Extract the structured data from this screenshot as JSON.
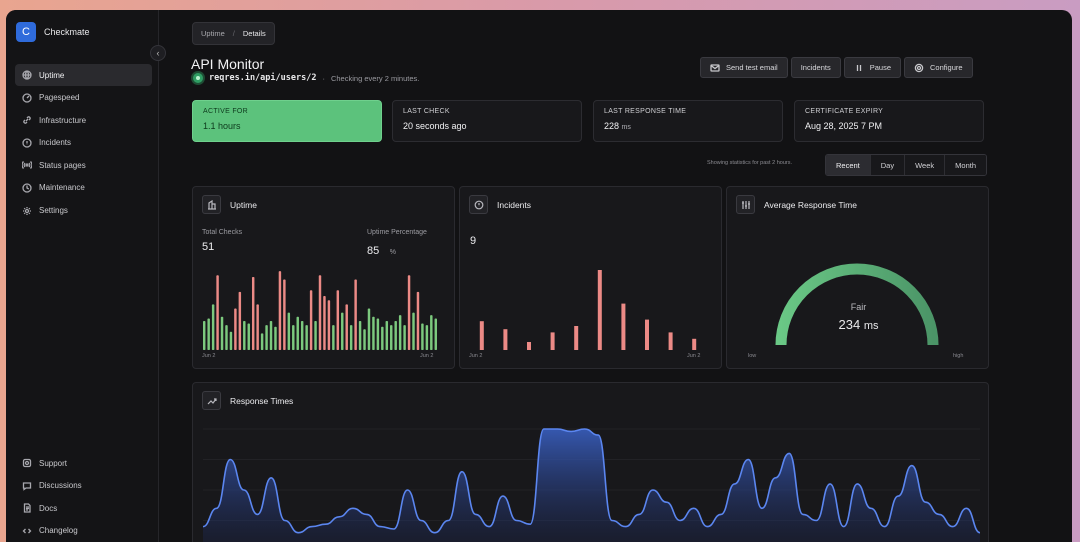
{
  "app": {
    "name": "Checkmate",
    "logo_letter": "C"
  },
  "sidebar": {
    "items": [
      {
        "label": "Uptime",
        "icon": "globe-icon",
        "active": true
      },
      {
        "label": "Pagespeed",
        "icon": "gauge-icon"
      },
      {
        "label": "Infrastructure",
        "icon": "link-icon"
      },
      {
        "label": "Incidents",
        "icon": "alert-circle-icon"
      },
      {
        "label": "Status pages",
        "icon": "broadcast-icon"
      },
      {
        "label": "Maintenance",
        "icon": "wrench-icon"
      },
      {
        "label": "Settings",
        "icon": "gear-icon"
      }
    ],
    "bottom_items": [
      {
        "label": "Support",
        "icon": "support-icon"
      },
      {
        "label": "Discussions",
        "icon": "chat-icon"
      },
      {
        "label": "Docs",
        "icon": "document-icon"
      },
      {
        "label": "Changelog",
        "icon": "code-icon"
      }
    ]
  },
  "breadcrumb": {
    "parent": "Uptime",
    "current": "Details",
    "separator": "/"
  },
  "monitor": {
    "title": "API Monitor",
    "url": "reqres.in/api/users/2",
    "check_note": "Checking every 2 minutes.",
    "status_color": "#2f9d63"
  },
  "actions": {
    "send_test_email": "Send test email",
    "incidents": "Incidents",
    "pause": "Pause",
    "configure": "Configure"
  },
  "stats": {
    "active_for": {
      "label": "ACTIVE FOR",
      "value": "1.1 hours"
    },
    "last_check": {
      "label": "LAST CHECK",
      "value": "20 seconds ago"
    },
    "last_response": {
      "label": "LAST RESPONSE TIME",
      "value": "228",
      "unit": "ms"
    },
    "cert_expiry": {
      "label": "CERTIFICATE EXPIRY",
      "value": "Aug 28, 2025 7 PM"
    }
  },
  "range": {
    "note": "Showing statistics for past 2 hours.",
    "options": [
      "Recent",
      "Day",
      "Week",
      "Month"
    ],
    "selected": "Recent"
  },
  "uptime_card": {
    "title": "Uptime",
    "total_checks_label": "Total Checks",
    "total_checks": "51",
    "uptime_pct_label": "Uptime Percentage",
    "uptime_pct": "85",
    "uptime_pct_unit": "%",
    "x_start": "Jun 2",
    "x_end": "Jun 2",
    "bars": [
      0.35,
      0.38,
      0.55,
      0.9,
      0.4,
      0.3,
      0.22,
      0.5,
      0.7,
      0.35,
      0.32,
      0.88,
      0.55,
      0.2,
      0.3,
      0.35,
      0.28,
      0.95,
      0.85,
      0.45,
      0.3,
      0.4,
      0.35,
      0.3,
      0.72,
      0.35,
      0.9,
      0.65,
      0.6,
      0.3,
      0.72,
      0.45,
      0.55,
      0.3,
      0.85,
      0.35,
      0.25,
      0.5,
      0.4,
      0.38,
      0.28,
      0.35,
      0.3,
      0.35,
      0.42,
      0.3,
      0.9,
      0.45,
      0.7,
      0.32,
      0.3,
      0.42,
      0.38
    ],
    "bar_status": [
      1,
      1,
      1,
      0,
      1,
      1,
      1,
      0,
      0,
      1,
      1,
      0,
      0,
      1,
      1,
      1,
      1,
      0,
      0,
      1,
      1,
      1,
      1,
      1,
      0,
      1,
      0,
      0,
      0,
      1,
      0,
      1,
      0,
      1,
      0,
      1,
      1,
      1,
      1,
      1,
      1,
      1,
      1,
      1,
      1,
      1,
      0,
      1,
      0,
      1,
      1,
      1,
      1
    ],
    "up_color": "#7cc97e",
    "down_color": "#ec8a86"
  },
  "incidents_card": {
    "title": "Incidents",
    "count": "9",
    "x_start": "Jun 2",
    "x_end": "Jun 2",
    "bars": [
      0.36,
      0.26,
      0.1,
      0.22,
      0.3,
      1.0,
      0.58,
      0.38,
      0.22,
      0.14
    ],
    "bar_color": "#ec8a86"
  },
  "response_card": {
    "title": "Average Response Time",
    "rating": "Fair",
    "value": "234",
    "unit": "ms",
    "low_label": "low",
    "high_label": "high",
    "fill_fraction": 0.55
  },
  "response_times": {
    "title": "Response Times",
    "values": [
      0.2,
      0.35,
      0.75,
      0.5,
      0.3,
      0.6,
      0.25,
      0.15,
      0.2,
      0.22,
      0.28,
      0.35,
      0.3,
      0.2,
      0.18,
      0.5,
      0.25,
      0.15,
      0.25,
      0.65,
      0.3,
      0.2,
      0.45,
      0.25,
      0.22,
      1.0,
      1.0,
      0.98,
      1.0,
      0.95,
      0.25,
      0.2,
      0.3,
      0.5,
      0.4,
      0.25,
      0.35,
      0.2,
      0.3,
      0.55,
      0.75,
      0.35,
      0.6,
      0.8,
      0.3,
      0.25,
      0.55,
      0.2,
      0.55,
      0.35,
      0.2,
      0.45,
      0.7,
      0.4,
      0.3,
      0.2,
      0.35,
      0.15
    ]
  }
}
